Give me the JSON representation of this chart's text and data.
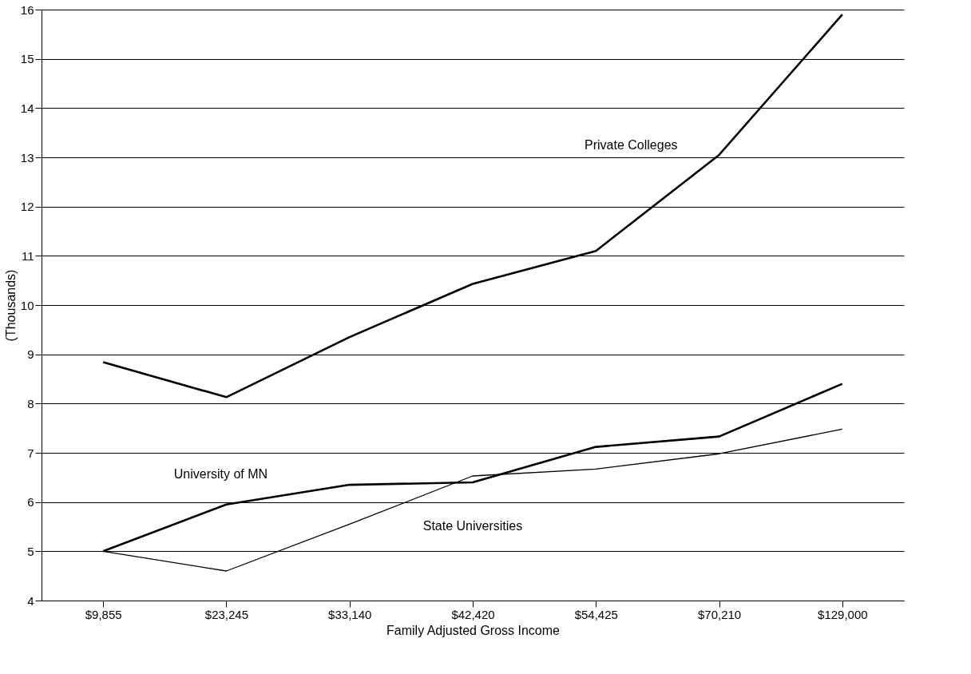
{
  "chart_data": {
    "type": "line",
    "xlabel": "Family Adjusted Gross Income",
    "ylabel": "(Thousands)",
    "categories": [
      "$9,855",
      "$23,245",
      "$33,140",
      "$42,420",
      "$54,425",
      "$70,210",
      "$129,000"
    ],
    "series": [
      {
        "name": "Private Colleges",
        "color": "#000000",
        "values": [
          8.84,
          8.13,
          9.35,
          10.43,
          11.1,
          13.05,
          15.9
        ]
      },
      {
        "name": "University of MN",
        "color": "#000000",
        "values": [
          5.0,
          5.95,
          6.35,
          6.4,
          7.12,
          7.33,
          8.4
        ]
      },
      {
        "name": "State Universities",
        "color": "#000000",
        "values": [
          5.0,
          4.6,
          5.55,
          6.53,
          6.67,
          6.98,
          7.48
        ]
      }
    ],
    "ylim": [
      4,
      16
    ],
    "yticks": [
      4,
      5,
      6,
      7,
      8,
      9,
      10,
      11,
      12,
      13,
      14,
      15,
      16
    ],
    "grid": "y",
    "marker": "none",
    "line_style": "solid"
  }
}
